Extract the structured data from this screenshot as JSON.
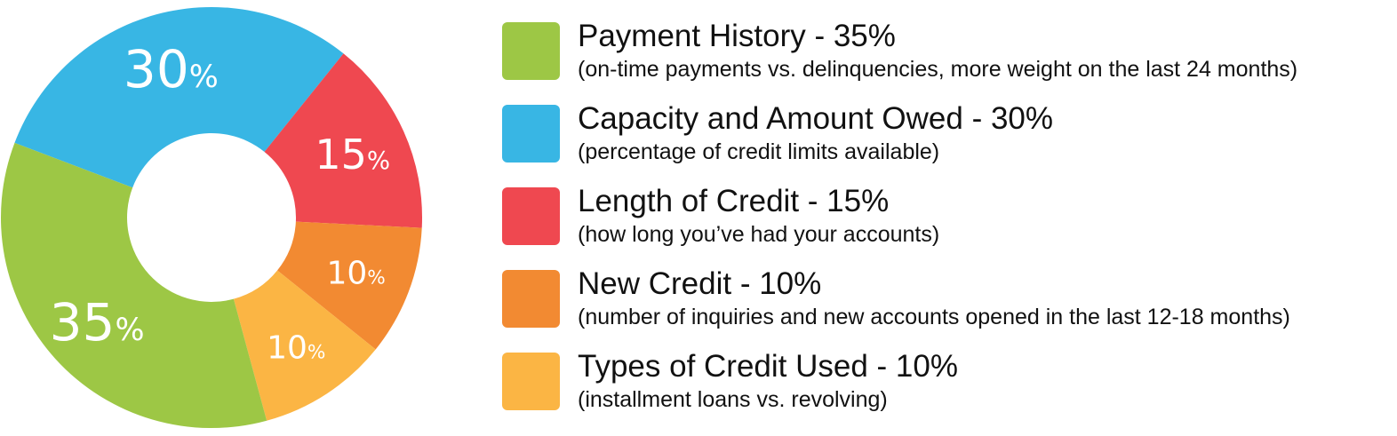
{
  "chart_data": {
    "type": "pie",
    "donut": true,
    "slices": [
      {
        "label": "Payment History",
        "value": 35,
        "display": "35%",
        "color": "#9dc745",
        "title": "Payment History - 35%",
        "description": "(on-time payments vs. delinquencies, more weight on the last 24 months)"
      },
      {
        "label": "Capacity and Amount Owed",
        "value": 30,
        "display": "30%",
        "color": "#38b6e4",
        "title": "Capacity and Amount Owed - 30%",
        "description": "(percentage of credit limits available)"
      },
      {
        "label": "Length of Credit",
        "value": 15,
        "display": "15%",
        "color": "#ef4850",
        "title": "Length of Credit - 15%",
        "description": "(how long you’ve had your accounts)"
      },
      {
        "label": "New Credit",
        "value": 10,
        "display": "10%",
        "color": "#f28a32",
        "title": "New Credit - 10%",
        "description": "(number of inquiries and new accounts opened in the last 12-18 months)"
      },
      {
        "label": "Types of Credit Used",
        "value": 10,
        "display": "10%",
        "color": "#fbb544",
        "title": "Types of Credit Used - 10%",
        "description": "(installment loans vs. revolving)"
      }
    ],
    "clockwise_order_from_top": [
      "Capacity and Amount Owed",
      "Length of Credit",
      "New Credit",
      "Types of Credit Used",
      "Payment History"
    ],
    "legend_placement": "right"
  }
}
